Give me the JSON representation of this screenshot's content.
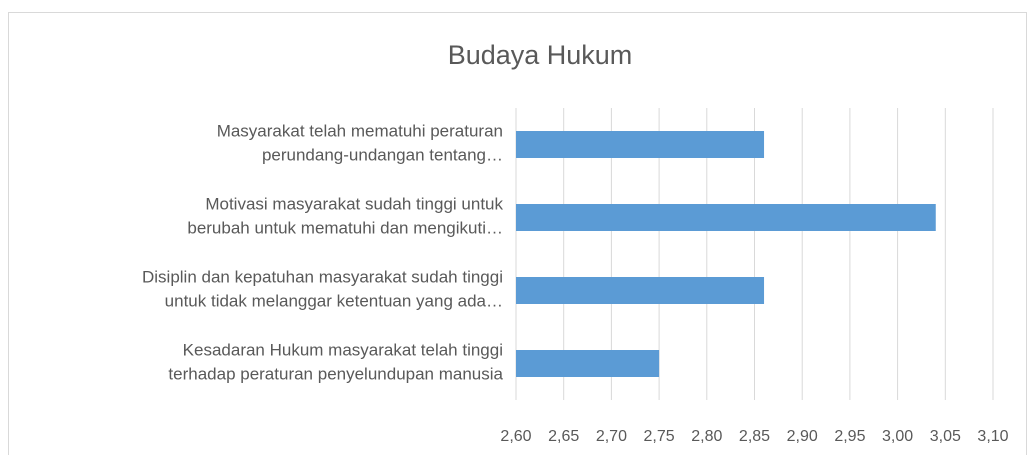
{
  "chart_data": {
    "type": "bar",
    "orientation": "horizontal",
    "title": "Budaya Hukum",
    "categories": [
      [
        "Masyarakat telah mematuhi peraturan",
        "perundang-undangan tentang…"
      ],
      [
        "Motivasi masyarakat sudah tinggi untuk",
        "berubah untuk mematuhi dan mengikuti…"
      ],
      [
        "Disiplin dan kepatuhan masyarakat sudah tinggi",
        "untuk tidak melanggar ketentuan yang ada…"
      ],
      [
        "Kesadaran Hukum masyarakat telah tinggi",
        "terhadap peraturan penyelundupan manusia"
      ]
    ],
    "values": [
      2.86,
      3.04,
      2.86,
      2.75
    ],
    "color": "#5b9bd5",
    "xlim": [
      2.6,
      3.1
    ],
    "xticks": [
      {
        "value": 2.6,
        "label": "2,60"
      },
      {
        "value": 2.65,
        "label": "2,65"
      },
      {
        "value": 2.7,
        "label": "2,70"
      },
      {
        "value": 2.75,
        "label": "2,75"
      },
      {
        "value": 2.8,
        "label": "2,80"
      },
      {
        "value": 2.85,
        "label": "2,85"
      },
      {
        "value": 2.9,
        "label": "2,90"
      },
      {
        "value": 2.95,
        "label": "2,95"
      },
      {
        "value": 3.0,
        "label": "3,00"
      },
      {
        "value": 3.05,
        "label": "3,05"
      },
      {
        "value": 3.1,
        "label": "3,10"
      }
    ],
    "grid": true
  }
}
